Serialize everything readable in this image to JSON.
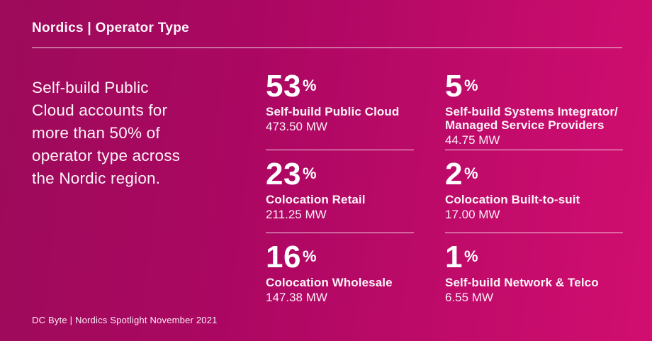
{
  "header": {
    "title": "Nordics | Operator Type"
  },
  "intro": {
    "text": "Self-build Public\nCloud accounts for\nmore than 50% of\noperator type across\nthe Nordic region."
  },
  "stats": {
    "col1": [
      {
        "percent": "53",
        "symbol": "%",
        "label": "Self-build Public Cloud",
        "capacity": "473.50 MW"
      },
      {
        "percent": "23",
        "symbol": "%",
        "label": "Colocation Retail",
        "capacity": "211.25 MW"
      },
      {
        "percent": "16",
        "symbol": "%",
        "label": "Colocation Wholesale",
        "capacity": "147.38 MW"
      }
    ],
    "col2": [
      {
        "percent": "5",
        "symbol": "%",
        "label": "Self-build Systems Integrator/\nManaged Service Providers",
        "capacity": "44.75 MW"
      },
      {
        "percent": "2",
        "symbol": "%",
        "label": "Colocation Built-to-suit",
        "capacity": "17.00 MW"
      },
      {
        "percent": "1",
        "symbol": "%",
        "label": "Self-build Network & Telco",
        "capacity": "6.55 MW"
      }
    ]
  },
  "footer": {
    "source": "DC Byte | Nordics Spotlight November 2021"
  },
  "colors": {
    "bg_gradient_left": "#9d0b5a",
    "bg_gradient_right": "#d10e70",
    "text": "#ffffff",
    "divider": "rgba(255,255,255,0.82)"
  },
  "chart_data": {
    "type": "table",
    "title": "Nordics | Operator Type",
    "categories": [
      "Self-build Public Cloud",
      "Colocation Retail",
      "Colocation Wholesale",
      "Self-build Systems Integrator/Managed Service Providers",
      "Colocation Built-to-suit",
      "Self-build Network & Telco"
    ],
    "series": [
      {
        "name": "Share of operator type (%)",
        "values": [
          53,
          23,
          16,
          5,
          2,
          1
        ]
      },
      {
        "name": "Capacity (MW)",
        "values": [
          473.5,
          211.25,
          147.38,
          44.75,
          17.0,
          6.55
        ]
      }
    ],
    "annotations": [
      "Self-build Public Cloud accounts for more than 50% of operator type across the Nordic region."
    ],
    "source": "DC Byte | Nordics Spotlight November 2021"
  }
}
